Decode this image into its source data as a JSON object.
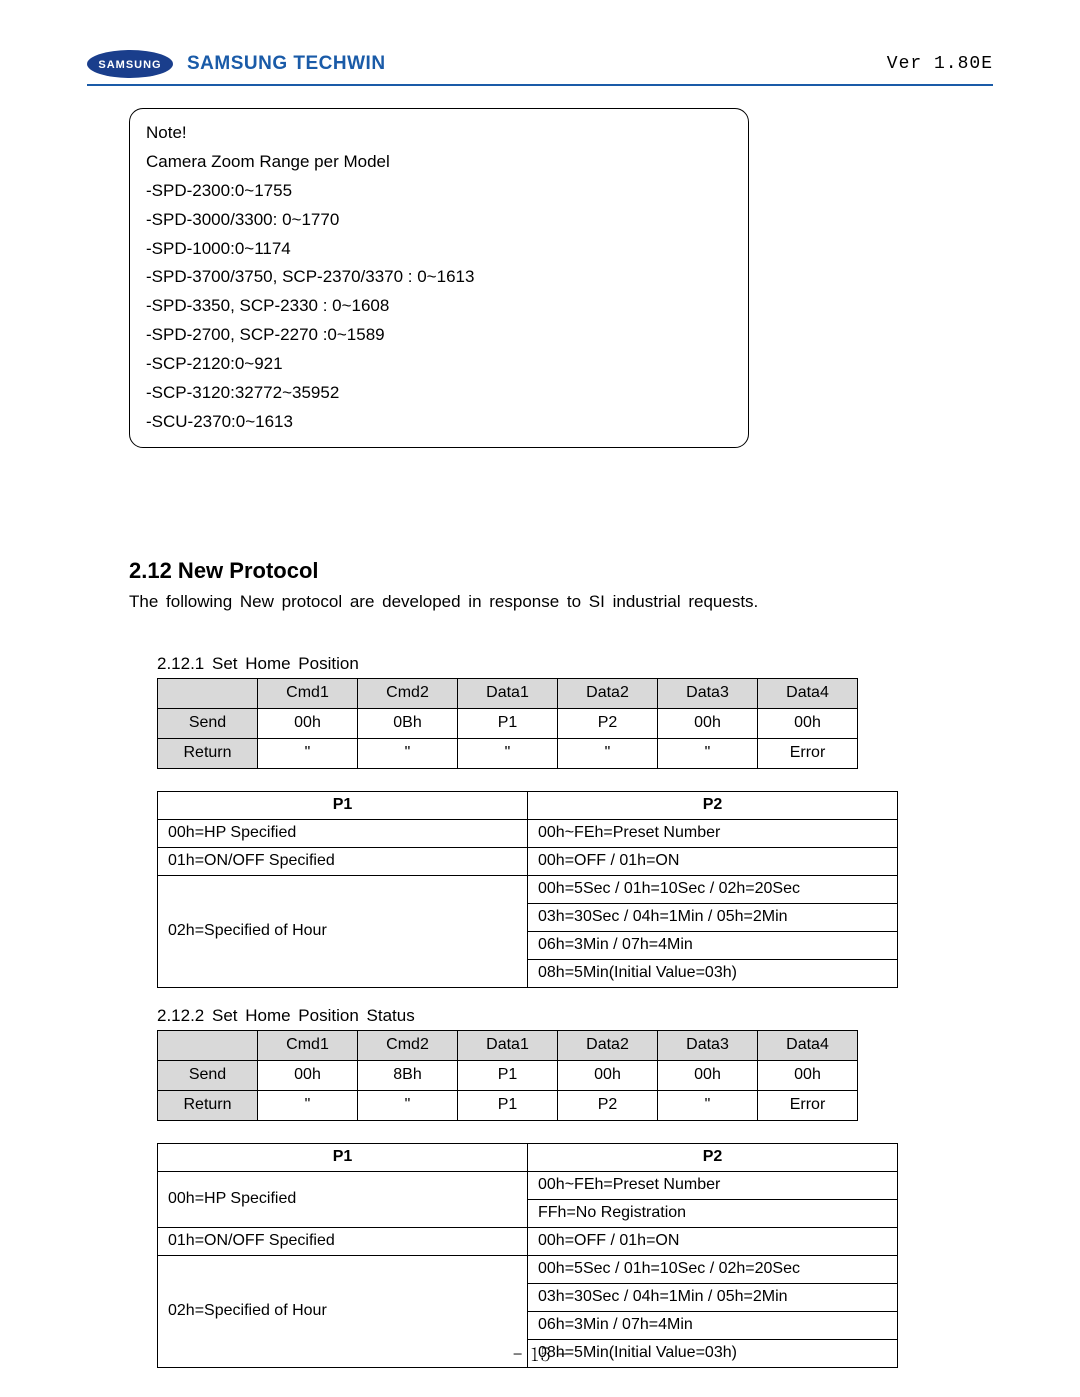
{
  "header": {
    "brand_text": "SAMSUNG TECHWIN",
    "version": "Ver 1.80E",
    "logo_bg": "#1a3e8c",
    "logo_text": "SAMSUNG"
  },
  "note_box": {
    "lines": [
      "Note!",
      "Camera Zoom Range per Model",
      "-SPD-2300:0~1755",
      "-SPD-3000/3300: 0~1770",
      "-SPD-1000:0~1174",
      "-SPD-3700/3750, SCP-2370/3370 : 0~1613",
      "-SPD-3350, SCP-2330 : 0~1608",
      "-SPD-2700, SCP-2270 :0~1589",
      "-SCP-2120:0~921",
      "-SCP-3120:32772~35952",
      "-SCU-2370:0~1613"
    ]
  },
  "section": {
    "title": "2.12 New Protocol",
    "intro": "The following New protocol are developed in response to SI industrial requests."
  },
  "sub1": {
    "title": "2.12.1 Set Home Position",
    "cmd": {
      "cols": [
        "",
        "Cmd1",
        "Cmd2",
        "Data1",
        "Data2",
        "Data3",
        "Data4"
      ],
      "rows": [
        [
          "Send",
          "00h",
          "0Bh",
          "P1",
          "P2",
          "00h",
          "00h"
        ],
        [
          "Return",
          "\"",
          "\"",
          "\"",
          "\"",
          "\"",
          "Error"
        ]
      ]
    },
    "desc": {
      "cols": [
        "P1",
        "P2"
      ],
      "rows": [
        {
          "p1": "00h=HP Specified",
          "p2": [
            "00h~FEh=Preset Number"
          ]
        },
        {
          "p1": "01h=ON/OFF Specified",
          "p2": [
            "00h=OFF / 01h=ON"
          ]
        },
        {
          "p1": "02h=Specified of Hour",
          "p2": [
            "00h=5Sec / 01h=10Sec / 02h=20Sec",
            "03h=30Sec / 04h=1Min / 05h=2Min",
            "06h=3Min / 07h=4Min",
            "08h=5Min(Initial Value=03h)"
          ]
        }
      ]
    }
  },
  "sub2": {
    "title": "2.12.2 Set Home Position Status",
    "cmd": {
      "cols": [
        "",
        "Cmd1",
        "Cmd2",
        "Data1",
        "Data2",
        "Data3",
        "Data4"
      ],
      "rows": [
        [
          "Send",
          "00h",
          "8Bh",
          "P1",
          "00h",
          "00h",
          "00h"
        ],
        [
          "Return",
          "\"",
          "\"",
          "P1",
          "P2",
          "\"",
          "Error"
        ]
      ]
    },
    "desc": {
      "cols": [
        "P1",
        "P2"
      ],
      "rows": [
        {
          "p1": "00h=HP Specified",
          "p2": [
            "00h~FEh=Preset Number",
            "FFh=No Registration"
          ]
        },
        {
          "p1": "01h=ON/OFF Specified",
          "p2": [
            "00h=OFF / 01h=ON"
          ]
        },
        {
          "p1": "02h=Specified of Hour",
          "p2": [
            "00h=5Sec / 01h=10Sec / 02h=20Sec",
            "03h=30Sec / 04h=1Min / 05h=2Min",
            "06h=3Min / 07h=4Min",
            "08h=5Min(Initial Value=03h)"
          ]
        }
      ]
    }
  },
  "page_number": "- 15 -"
}
